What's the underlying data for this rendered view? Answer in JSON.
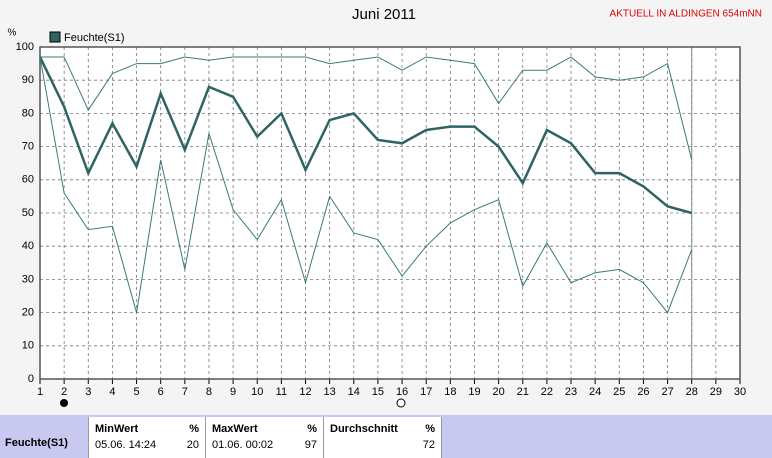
{
  "chart_data": {
    "type": "line",
    "title": "Juni 2011",
    "station": "AKTUELL IN ALDINGEN 654mNN",
    "y_unit": "%",
    "x": [
      1,
      2,
      3,
      4,
      5,
      6,
      7,
      8,
      9,
      10,
      11,
      12,
      13,
      14,
      15,
      16,
      17,
      18,
      19,
      20,
      21,
      22,
      23,
      24,
      25,
      26,
      27,
      28
    ],
    "series": [
      {
        "color": "#3a7a7a",
        "values": [
          97,
          97,
          81,
          92,
          95,
          95,
          97,
          96,
          97,
          97,
          97,
          97,
          95,
          96,
          97,
          93,
          97,
          96,
          95,
          83,
          93,
          93,
          97,
          91,
          90,
          91,
          95,
          66
        ]
      },
      {
        "name": "Feuchte(S1)",
        "color": "#2f6464",
        "values": [
          97,
          82,
          62,
          77,
          64,
          86,
          69,
          88,
          85,
          73,
          80,
          63,
          78,
          80,
          72,
          71,
          75,
          76,
          76,
          70,
          59,
          75,
          71,
          62,
          62,
          58,
          52,
          50
        ]
      },
      {
        "color": "#3a7a7a",
        "values": [
          97,
          56,
          45,
          46,
          20,
          66,
          33,
          74,
          51,
          42,
          54,
          29,
          55,
          44,
          42,
          31,
          40,
          47,
          51,
          54,
          28,
          41,
          29,
          32,
          33,
          29,
          20,
          39
        ]
      }
    ],
    "xlim": [
      1,
      30
    ],
    "xticks": [
      1,
      2,
      3,
      4,
      5,
      6,
      7,
      8,
      9,
      10,
      11,
      12,
      13,
      14,
      15,
      16,
      17,
      18,
      19,
      20,
      21,
      22,
      23,
      24,
      25,
      26,
      27,
      28,
      29,
      30
    ],
    "ylim": [
      0,
      100
    ],
    "yticks": [
      0,
      10,
      20,
      30,
      40,
      50,
      60,
      70,
      80,
      90,
      100
    ],
    "grid": true
  },
  "summary": {
    "sensor": "Feuchte(S1)",
    "columns": [
      {
        "title": "MinWert",
        "unit": "%",
        "time": "05.06. 14:24",
        "value": "20"
      },
      {
        "title": "MaxWert",
        "unit": "%",
        "time": "01.06. 00:02",
        "value": "97"
      },
      {
        "title": "Durchschnitt",
        "unit": "%",
        "value": "72"
      }
    ]
  }
}
